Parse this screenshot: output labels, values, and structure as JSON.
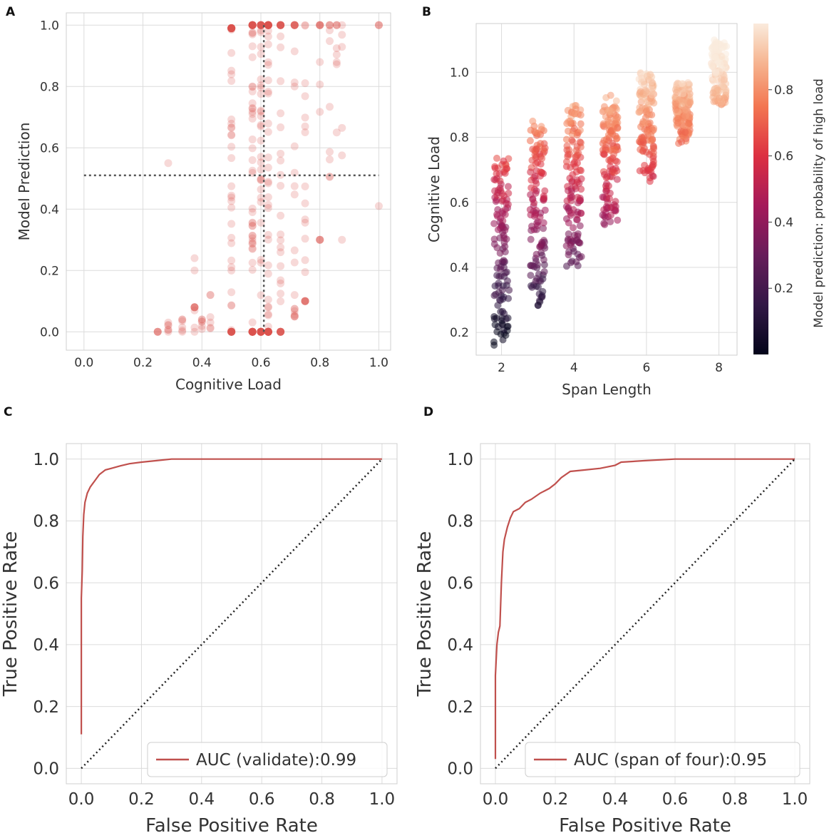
{
  "colors": {
    "red": "#c0504d",
    "scatter_fill": "#d9534f",
    "ref": "#555555",
    "grid": "#dcdcdc",
    "frame": "#cfcfcf"
  },
  "chart_data": [
    {
      "panel": "A",
      "type": "scatter",
      "title": "",
      "xlabel": "Cognitive Load",
      "ylabel": "Model Prediction",
      "xlim": [
        -0.06,
        1.04
      ],
      "ylim": [
        -0.06,
        1.04
      ],
      "xticks": [
        "0.0",
        "0.2",
        "0.4",
        "0.6",
        "0.8",
        "1.0"
      ],
      "yticks": [
        "0.0",
        "0.2",
        "0.4",
        "0.6",
        "0.8",
        "1.0"
      ],
      "hline": 0.51,
      "vline": 0.61,
      "columns": [
        {
          "x": 0.25,
          "n": 4,
          "low": 0.0,
          "high": 0.0
        },
        {
          "x": 0.2857,
          "n": 6,
          "low": 0.0,
          "high": 0.03,
          "extra": [
            0.55
          ]
        },
        {
          "x": 0.3333,
          "n": 6,
          "low": 0.0,
          "high": 0.04
        },
        {
          "x": 0.375,
          "n": 8,
          "low": 0.0,
          "high": 0.08,
          "extra": [
            0.24,
            0.2
          ]
        },
        {
          "x": 0.4,
          "n": 6,
          "low": 0.0,
          "high": 0.04
        },
        {
          "x": 0.4286,
          "n": 6,
          "low": 0.0,
          "high": 0.12
        },
        {
          "x": 0.5,
          "n": 60,
          "low": 0.0,
          "high": 0.99
        },
        {
          "x": 0.5714,
          "n": 70,
          "low": 0.0,
          "high": 1.0
        },
        {
          "x": 0.6,
          "n": 60,
          "low": 0.0,
          "high": 1.0
        },
        {
          "x": 0.625,
          "n": 70,
          "low": 0.0,
          "high": 1.0
        },
        {
          "x": 0.6667,
          "n": 40,
          "low": 0.0,
          "high": 1.0
        },
        {
          "x": 0.7143,
          "n": 25,
          "low": 0.05,
          "high": 1.0
        },
        {
          "x": 0.75,
          "n": 20,
          "low": 0.1,
          "high": 1.0
        },
        {
          "x": 0.8,
          "n": 12,
          "low": 0.3,
          "high": 1.0
        },
        {
          "x": 0.8333,
          "n": 10,
          "low": 0.5,
          "high": 1.0
        },
        {
          "x": 0.8571,
          "n": 8,
          "low": 0.65,
          "high": 1.0
        },
        {
          "x": 0.875,
          "n": 6,
          "low": 0.3,
          "high": 1.0
        },
        {
          "x": 1.0,
          "n": 3,
          "low": 1.0,
          "high": 1.0,
          "extra": [
            0.41
          ]
        }
      ]
    },
    {
      "panel": "B",
      "type": "scatter",
      "title": "",
      "xlabel": "Span Length",
      "ylabel": "Cognitive Load",
      "xlim": [
        1.3,
        8.5
      ],
      "ylim": [
        0.13,
        1.15
      ],
      "xticks": [
        "2",
        "4",
        "6",
        "8"
      ],
      "yticks": [
        "0.2",
        "0.4",
        "0.6",
        "0.8",
        "1.0"
      ],
      "colorbar": {
        "label": "Model prediction: probability of high load",
        "ticks": [
          "0.2",
          "0.4",
          "0.6",
          "0.8"
        ],
        "range": [
          0.0,
          1.0
        ]
      },
      "groups": [
        {
          "span": 2,
          "low": 0.16,
          "high": 0.75
        },
        {
          "span": 3,
          "low": 0.28,
          "high": 0.85
        },
        {
          "span": 4,
          "low": 0.4,
          "high": 0.9
        },
        {
          "span": 5,
          "low": 0.53,
          "high": 0.93
        },
        {
          "span": 6,
          "low": 0.66,
          "high": 1.0
        },
        {
          "span": 7,
          "low": 0.78,
          "high": 0.97
        },
        {
          "span": 8,
          "low": 0.9,
          "high": 1.1
        }
      ]
    },
    {
      "panel": "C",
      "type": "line",
      "title": "",
      "xlabel": "False Positive Rate",
      "ylabel": "True Positive Rate",
      "xlim": [
        -0.05,
        1.05
      ],
      "ylim": [
        -0.05,
        1.05
      ],
      "xticks": [
        "0.0",
        "0.2",
        "0.4",
        "0.6",
        "0.8",
        "1.0"
      ],
      "yticks": [
        "0.0",
        "0.2",
        "0.4",
        "0.6",
        "0.8",
        "1.0"
      ],
      "legend": "AUC (validate):0.99",
      "series": [
        {
          "name": "AUC (validate):0.99",
          "x": [
            0.0,
            0.0,
            0.003,
            0.005,
            0.008,
            0.012,
            0.02,
            0.03,
            0.045,
            0.06,
            0.08,
            0.1,
            0.13,
            0.16,
            0.2,
            0.25,
            0.3,
            0.4,
            0.6,
            0.8,
            1.0
          ],
          "y": [
            0.11,
            0.55,
            0.64,
            0.75,
            0.82,
            0.86,
            0.89,
            0.91,
            0.93,
            0.95,
            0.965,
            0.97,
            0.978,
            0.985,
            0.99,
            0.995,
            1.0,
            1.0,
            1.0,
            1.0,
            1.0
          ]
        },
        {
          "name": "reference",
          "x": [
            0.0,
            1.0
          ],
          "y": [
            0.0,
            1.0
          ]
        }
      ]
    },
    {
      "panel": "D",
      "type": "line",
      "title": "",
      "xlabel": "False Positive Rate",
      "ylabel": "True Positive Rate",
      "xlim": [
        -0.05,
        1.05
      ],
      "ylim": [
        -0.05,
        1.05
      ],
      "xticks": [
        "0.0",
        "0.2",
        "0.4",
        "0.6",
        "0.8",
        "1.0"
      ],
      "yticks": [
        "0.0",
        "0.2",
        "0.4",
        "0.6",
        "0.8",
        "1.0"
      ],
      "legend": "AUC (span of four):0.95",
      "series": [
        {
          "name": "AUC (span of four):0.95",
          "x": [
            0.0,
            0.0,
            0.005,
            0.01,
            0.015,
            0.02,
            0.025,
            0.03,
            0.04,
            0.05,
            0.06,
            0.08,
            0.1,
            0.12,
            0.15,
            0.18,
            0.2,
            0.22,
            0.25,
            0.3,
            0.35,
            0.4,
            0.42,
            0.5,
            0.6,
            0.8,
            1.0
          ],
          "y": [
            0.03,
            0.3,
            0.4,
            0.44,
            0.46,
            0.6,
            0.7,
            0.74,
            0.78,
            0.81,
            0.83,
            0.84,
            0.86,
            0.87,
            0.89,
            0.905,
            0.92,
            0.94,
            0.96,
            0.965,
            0.97,
            0.98,
            0.99,
            0.995,
            1.0,
            1.0,
            1.0
          ]
        },
        {
          "name": "reference",
          "x": [
            0.0,
            1.0
          ],
          "y": [
            0.0,
            1.0
          ]
        }
      ]
    }
  ]
}
